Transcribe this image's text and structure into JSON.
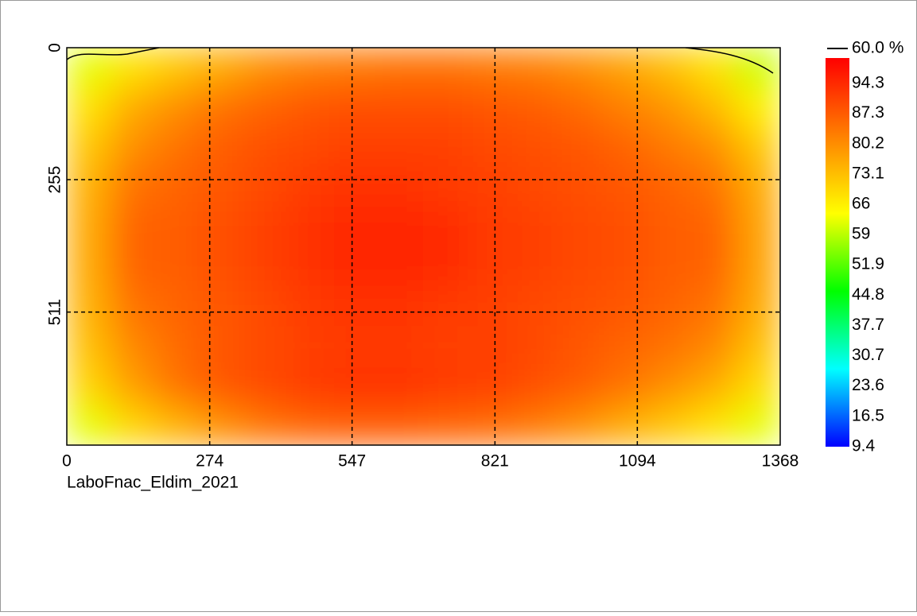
{
  "chart_data": {
    "type": "heatmap",
    "caption": "LaboFnac_Eldim_2021",
    "xlim": [
      0,
      1368
    ],
    "xticks": [
      0,
      274,
      547,
      821,
      1094,
      1368
    ],
    "ylim": [
      0,
      768
    ],
    "yticks": [
      0,
      255,
      511
    ],
    "grid": true,
    "zlim": [
      9.4,
      100.2
    ],
    "colorbar_ticks": [
      94.3,
      87.3,
      80.2,
      73.1,
      66.0,
      59.0,
      51.9,
      44.8,
      37.7,
      30.7,
      23.6,
      16.5,
      9.4
    ],
    "colorscale": [
      "#0000ff",
      "#00ffff",
      "#00ff00",
      "#ffff00",
      "#ff8000",
      "#ff0000"
    ],
    "contour_label": "60.0 %",
    "z": [
      [
        62,
        68,
        72,
        76,
        80,
        82,
        83,
        84,
        84,
        83,
        82,
        80,
        77,
        73,
        68,
        60
      ],
      [
        68,
        76,
        80,
        84,
        86,
        88,
        89,
        89,
        89,
        88,
        87,
        85,
        82,
        79,
        74,
        66
      ],
      [
        72,
        80,
        84,
        87,
        89,
        90,
        91,
        91,
        91,
        90,
        89,
        88,
        86,
        83,
        80,
        72
      ],
      [
        75,
        84,
        86,
        88,
        90,
        92,
        93,
        93,
        92,
        91,
        90,
        89,
        88,
        86,
        84,
        76
      ],
      [
        76,
        86,
        87,
        89,
        91,
        93,
        95,
        95,
        94,
        92,
        91,
        90,
        89,
        87,
        86,
        77
      ],
      [
        76,
        86,
        87,
        89,
        91,
        93,
        95,
        95,
        94,
        92,
        91,
        90,
        89,
        87,
        86,
        77
      ],
      [
        75,
        84,
        86,
        88,
        90,
        92,
        93,
        93,
        92,
        91,
        90,
        89,
        88,
        86,
        84,
        76
      ],
      [
        73,
        81,
        85,
        88,
        90,
        91,
        92,
        92,
        91,
        91,
        90,
        88,
        86,
        84,
        81,
        73
      ],
      [
        70,
        78,
        84,
        88,
        90,
        92,
        93,
        93,
        92,
        91,
        89,
        87,
        84,
        80,
        76,
        69
      ],
      [
        62,
        70,
        75,
        80,
        84,
        86,
        87,
        87,
        86,
        85,
        83,
        80,
        76,
        72,
        68,
        62
      ]
    ]
  }
}
